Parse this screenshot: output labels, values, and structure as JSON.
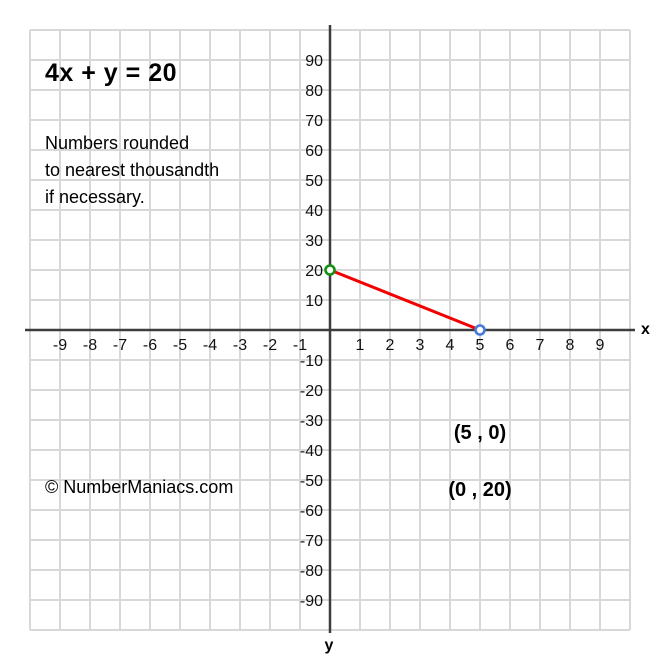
{
  "page": {
    "background": "#ffffff"
  },
  "header": {
    "equation": "4x + y = 20",
    "note_lines": [
      "Numbers rounded",
      "to nearest thousandth",
      "if necessary."
    ]
  },
  "footer": {
    "copyright": "© NumberManiacs.com"
  },
  "annotations": {
    "x_intercept_label": "(5 , 0)",
    "y_intercept_label": "(0 , 20)"
  },
  "colors": {
    "line": "#f40000",
    "x_intercept": "#4879de",
    "y_intercept": "#149114",
    "axis": "#3d3d3d",
    "grid": "#d8d8d8",
    "tick_text": "#111111"
  },
  "chart_data": {
    "type": "line",
    "title": "4x + y = 20",
    "equation": "4x + y = 20",
    "x_axis_label": "x",
    "y_axis_label": "y",
    "x_range": [
      -10,
      10
    ],
    "y_range": [
      -100,
      100
    ],
    "x_tick_step": 1,
    "y_tick_step": 10,
    "grid": true,
    "x_ticks": [
      -9,
      -8,
      -7,
      -6,
      -5,
      -4,
      -3,
      -2,
      -1,
      1,
      2,
      3,
      4,
      5,
      6,
      7,
      8,
      9
    ],
    "y_ticks": [
      90,
      80,
      70,
      60,
      50,
      40,
      30,
      20,
      10,
      -10,
      -20,
      -30,
      -40,
      -50,
      -60,
      -70,
      -80,
      -90
    ],
    "segment": {
      "from": [
        0,
        20
      ],
      "to": [
        5,
        0
      ]
    },
    "points": [
      {
        "x": 0,
        "y": 20,
        "label": "(0 , 20)",
        "role": "y-intercept",
        "color": "#149114"
      },
      {
        "x": 5,
        "y": 0,
        "label": "(5 , 0)",
        "role": "x-intercept",
        "color": "#4879de"
      }
    ]
  }
}
